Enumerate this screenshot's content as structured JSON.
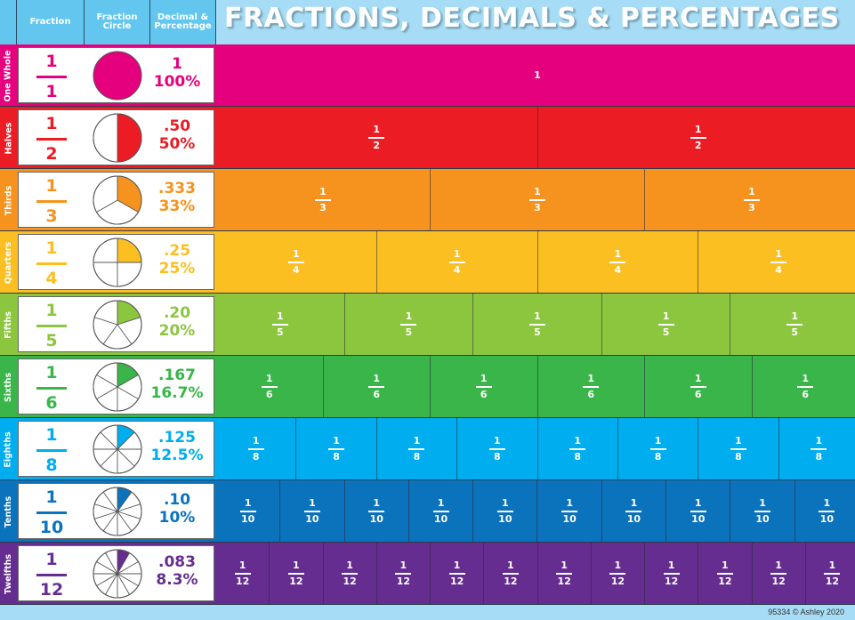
{
  "header": {
    "col_fraction": "Fraction",
    "col_circle": "Fraction Circle",
    "col_decimal": "Decimal & Percentage",
    "title": "FRACTIONS, DECIMALS & PERCENTAGES"
  },
  "rows": [
    {
      "label": "One Whole",
      "numerator": "1",
      "denominator": "1",
      "parts": 1,
      "decimal": "1",
      "percent": "100%",
      "color": "#e5007e"
    },
    {
      "label": "Halves",
      "numerator": "1",
      "denominator": "2",
      "parts": 2,
      "decimal": ".50",
      "percent": "50%",
      "color": "#ec1c24"
    },
    {
      "label": "Thirds",
      "numerator": "1",
      "denominator": "3",
      "parts": 3,
      "decimal": ".333",
      "percent": "33%",
      "color": "#f6921e"
    },
    {
      "label": "Quarters",
      "numerator": "1",
      "denominator": "4",
      "parts": 4,
      "decimal": ".25",
      "percent": "25%",
      "color": "#fbbf22"
    },
    {
      "label": "Fifths",
      "numerator": "1",
      "denominator": "5",
      "parts": 5,
      "decimal": ".20",
      "percent": "20%",
      "color": "#8cc63e"
    },
    {
      "label": "Sixths",
      "numerator": "1",
      "denominator": "6",
      "parts": 6,
      "decimal": ".167",
      "percent": "16.7%",
      "color": "#39b54a"
    },
    {
      "label": "Eighths",
      "numerator": "1",
      "denominator": "8",
      "parts": 8,
      "decimal": ".125",
      "percent": "12.5%",
      "color": "#00adee"
    },
    {
      "label": "Tenths",
      "numerator": "1",
      "denominator": "10",
      "parts": 10,
      "decimal": ".10",
      "percent": "10%",
      "color": "#0b72bc"
    },
    {
      "label": "Twelfths",
      "numerator": "1",
      "denominator": "12",
      "parts": 12,
      "decimal": ".083",
      "percent": "8.3%",
      "color": "#652d90"
    }
  ],
  "footer": {
    "credit": "95334 © Ashley 2020"
  }
}
